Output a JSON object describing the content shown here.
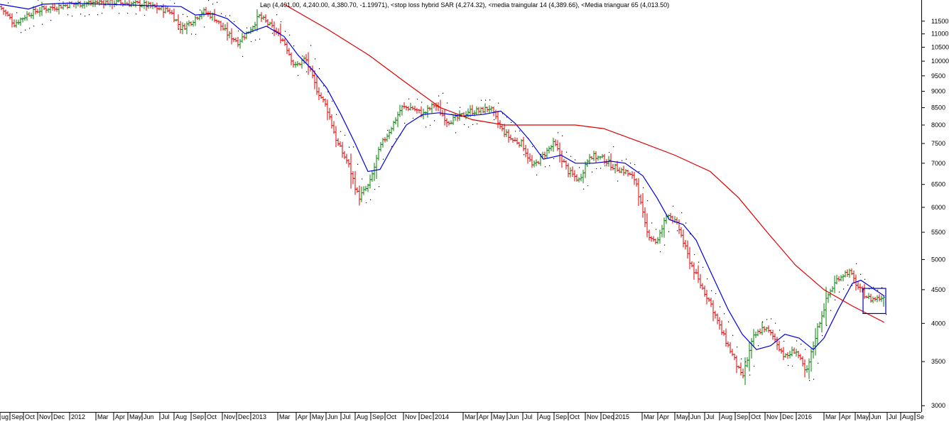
{
  "legend": "Lan (4,401.00, 4,240.00, 4,380.70, -1.19971), <stop loss hybrid SAR (4,274.32), <media traingular 14 (4,389.66), <Media trianguar 65 (4,013.50)",
  "colors": {
    "background": "#ffffff",
    "up_bar": "#008000",
    "down_bar": "#e00000",
    "neutral_bar": "#000000",
    "ma14": "#0000dd",
    "ma65": "#dd0000",
    "sar": "#000000",
    "highlight_box": "#0000aa"
  },
  "chart_data": {
    "type": "ohlc-bar",
    "title": "",
    "yscale": "log",
    "ylim": [
      2950,
      12200
    ],
    "yticks": [
      3000,
      3500,
      4000,
      4500,
      5000,
      5500,
      6000,
      6500,
      7000,
      7500,
      8000,
      8500,
      9000,
      9500,
      10000,
      10500,
      11000,
      11500
    ],
    "ytick_labels": [
      "3000",
      "3500",
      "4000",
      "4500",
      "5000",
      "5500",
      "6000",
      "6500",
      "7000",
      "7500",
      "8000",
      "8500",
      "9000",
      "9500",
      "10000",
      "10500",
      "11000",
      "11500"
    ],
    "x_labels": [
      "ug",
      "Sep",
      "Oct",
      "Nov",
      "Dec",
      "2012",
      "Mar",
      "Apr",
      "May",
      "Jun",
      "Jul",
      "Aug",
      "Sep",
      "Oct",
      "Nov",
      "Dec",
      "2013",
      "Mar",
      "Apr",
      "May",
      "Jun",
      "Jul",
      "Aug",
      "Sep",
      "Oct",
      "Nov",
      "Dec",
      "2014",
      "Mar",
      "Apr",
      "May",
      "Jun",
      "Jul",
      "Aug",
      "Sep",
      "Oct",
      "Nov",
      "Dec",
      "2015",
      "Mar",
      "Apr",
      "May",
      "Jun",
      "Jul",
      "Aug",
      "Sep",
      "Oct",
      "Nov",
      "Dec",
      "2016",
      "Mar",
      "Apr",
      "May",
      "Jun",
      "Jul",
      "Aug",
      "Se"
    ],
    "x_label_positions": [
      0,
      14,
      33,
      53,
      73,
      98,
      135,
      160,
      180,
      200,
      225,
      245,
      269,
      289,
      313,
      333,
      353,
      391,
      417,
      437,
      459,
      480,
      500,
      522,
      542,
      568,
      590,
      610,
      652,
      672,
      692,
      714,
      736,
      757,
      780,
      800,
      824,
      846,
      864,
      904,
      926,
      950,
      970,
      992,
      1013,
      1035,
      1055,
      1077,
      1099,
      1121,
      1160,
      1182,
      1204,
      1224,
      1249,
      1268,
      1288
    ],
    "series": [
      {
        "name": "media traingular 14",
        "color": "#0000dd",
        "points": [
          [
            0,
            12200
          ],
          [
            40,
            12000
          ],
          [
            60,
            12200
          ],
          [
            95,
            12250
          ],
          [
            150,
            12200
          ],
          [
            255,
            12100
          ],
          [
            275,
            11750
          ],
          [
            300,
            11800
          ],
          [
            320,
            11600
          ],
          [
            345,
            11000
          ],
          [
            375,
            11300
          ],
          [
            400,
            10900
          ],
          [
            420,
            10200
          ],
          [
            440,
            9700
          ],
          [
            460,
            9100
          ],
          [
            480,
            8300
          ],
          [
            500,
            7500
          ],
          [
            518,
            6800
          ],
          [
            535,
            6850
          ],
          [
            552,
            7400
          ],
          [
            572,
            8000
          ],
          [
            595,
            8300
          ],
          [
            618,
            8350
          ],
          [
            650,
            8250
          ],
          [
            680,
            8300
          ],
          [
            705,
            8400
          ],
          [
            725,
            8050
          ],
          [
            745,
            7600
          ],
          [
            765,
            7100
          ],
          [
            790,
            7200
          ],
          [
            810,
            7000
          ],
          [
            835,
            7000
          ],
          [
            860,
            7050
          ],
          [
            880,
            7000
          ],
          [
            905,
            6700
          ],
          [
            925,
            6200
          ],
          [
            942,
            5750
          ],
          [
            962,
            5650
          ],
          [
            980,
            5350
          ],
          [
            1000,
            4800
          ],
          [
            1025,
            4200
          ],
          [
            1045,
            3850
          ],
          [
            1065,
            3650
          ],
          [
            1085,
            3700
          ],
          [
            1105,
            3850
          ],
          [
            1125,
            3800
          ],
          [
            1145,
            3650
          ],
          [
            1160,
            3800
          ],
          [
            1180,
            4200
          ],
          [
            1200,
            4600
          ],
          [
            1212,
            4650
          ],
          [
            1225,
            4550
          ],
          [
            1245,
            4400
          ]
        ]
      },
      {
        "name": "Media trianguar 65",
        "color": "#dd0000",
        "points": [
          [
            400,
            12200
          ],
          [
            460,
            11200
          ],
          [
            520,
            10200
          ],
          [
            570,
            9300
          ],
          [
            620,
            8500
          ],
          [
            665,
            8150
          ],
          [
            710,
            8000
          ],
          [
            760,
            8000
          ],
          [
            810,
            8000
          ],
          [
            850,
            7900
          ],
          [
            900,
            7550
          ],
          [
            950,
            7200
          ],
          [
            1000,
            6800
          ],
          [
            1040,
            6200
          ],
          [
            1080,
            5500
          ],
          [
            1120,
            4900
          ],
          [
            1160,
            4500
          ],
          [
            1200,
            4250
          ],
          [
            1245,
            4013.5
          ]
        ]
      }
    ],
    "ohlc_anchor_closes": [
      [
        0,
        12100
      ],
      [
        20,
        11400
      ],
      [
        40,
        11800
      ],
      [
        60,
        12000
      ],
      [
        80,
        12100
      ],
      [
        100,
        12200
      ],
      [
        140,
        12300
      ],
      [
        200,
        12200
      ],
      [
        240,
        11900
      ],
      [
        255,
        11200
      ],
      [
        270,
        11500
      ],
      [
        285,
        11900
      ],
      [
        300,
        11700
      ],
      [
        320,
        11000
      ],
      [
        335,
        10700
      ],
      [
        350,
        11100
      ],
      [
        365,
        11700
      ],
      [
        385,
        11200
      ],
      [
        400,
        10700
      ],
      [
        415,
        9800
      ],
      [
        430,
        10100
      ],
      [
        445,
        9100
      ],
      [
        460,
        8500
      ],
      [
        475,
        7500
      ],
      [
        490,
        7000
      ],
      [
        505,
        6200
      ],
      [
        520,
        6500
      ],
      [
        535,
        7400
      ],
      [
        550,
        7900
      ],
      [
        565,
        8500
      ],
      [
        580,
        8500
      ],
      [
        595,
        8300
      ],
      [
        612,
        8600
      ],
      [
        630,
        8100
      ],
      [
        645,
        8200
      ],
      [
        660,
        8400
      ],
      [
        675,
        8400
      ],
      [
        690,
        8500
      ],
      [
        705,
        7900
      ],
      [
        720,
        7600
      ],
      [
        735,
        7500
      ],
      [
        750,
        6900
      ],
      [
        765,
        7200
      ],
      [
        780,
        7500
      ],
      [
        800,
        6800
      ],
      [
        815,
        6600
      ],
      [
        830,
        7200
      ],
      [
        850,
        7100
      ],
      [
        865,
        6900
      ],
      [
        880,
        6800
      ],
      [
        895,
        6600
      ],
      [
        910,
        5500
      ],
      [
        925,
        5300
      ],
      [
        940,
        5900
      ],
      [
        955,
        5600
      ],
      [
        970,
        5000
      ],
      [
        985,
        4600
      ],
      [
        1000,
        4300
      ],
      [
        1015,
        3900
      ],
      [
        1030,
        3600
      ],
      [
        1045,
        3300
      ],
      [
        1060,
        3800
      ],
      [
        1075,
        3950
      ],
      [
        1090,
        3800
      ],
      [
        1105,
        3550
      ],
      [
        1120,
        3650
      ],
      [
        1135,
        3350
      ],
      [
        1150,
        3900
      ],
      [
        1165,
        4400
      ],
      [
        1180,
        4700
      ],
      [
        1195,
        4800
      ],
      [
        1210,
        4500
      ],
      [
        1225,
        4350
      ],
      [
        1245,
        4380.7
      ]
    ],
    "sar_note": "dotted stop loss hybrid SAR trailing above/below price",
    "highlight_box": {
      "x_from": 1215,
      "x_to": 1247,
      "y_from": 4140,
      "y_to": 4520
    }
  }
}
